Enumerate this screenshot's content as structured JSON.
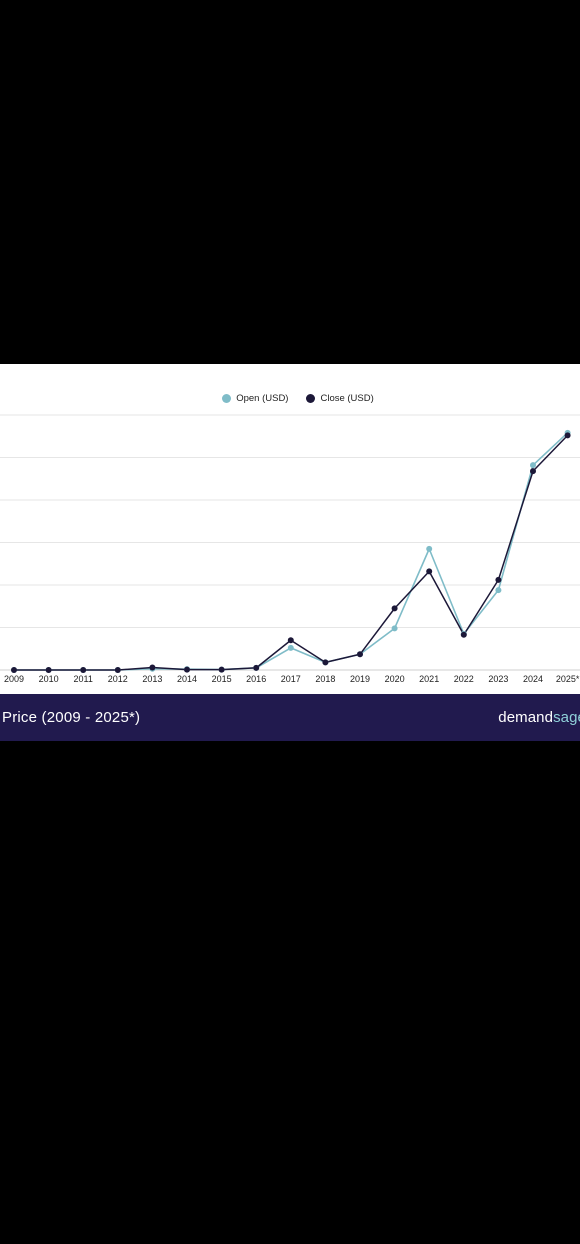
{
  "chart_data": {
    "type": "line",
    "title": "Price (2009 - 2025*)",
    "xlabel": "",
    "ylabel": "",
    "x": [
      "2009",
      "2010",
      "2011",
      "2012",
      "2013",
      "2014",
      "2015",
      "2016",
      "2017",
      "2018",
      "2019",
      "2020",
      "2021",
      "2022",
      "2023",
      "2024",
      "2025*"
    ],
    "ylim": [
      0,
      6
    ],
    "grid": true,
    "legend_position": "top-center",
    "series": [
      {
        "name": "Open (USD)",
        "color": "#7fbcc8",
        "values": [
          0,
          0,
          0,
          0,
          0.03,
          0.02,
          0.01,
          0.05,
          0.52,
          0.18,
          0.37,
          0.98,
          2.85,
          0.85,
          1.88,
          4.82,
          5.58
        ]
      },
      {
        "name": "Close (USD)",
        "color": "#1c1838",
        "values": [
          0,
          0,
          0,
          0,
          0.06,
          0.01,
          0.01,
          0.05,
          0.7,
          0.18,
          0.37,
          1.45,
          2.32,
          0.83,
          2.12,
          4.68,
          5.52
        ]
      }
    ]
  },
  "footer": {
    "title": "Price (2009 - 2025*)",
    "brand_a": "demand",
    "brand_b": "sage"
  },
  "colors": {
    "background": "#000000",
    "card": "#ffffff",
    "footer": "#211a4e",
    "grid": "#e6e6e6"
  }
}
